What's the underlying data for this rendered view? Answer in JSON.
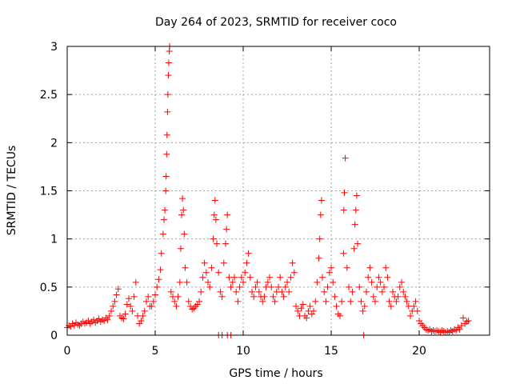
{
  "chart_data": {
    "type": "scatter",
    "title": "Day 264 of 2023, SRMTID for receiver coco",
    "xlabel": "GPS time / hours",
    "ylabel": "SRMTID / TECUs",
    "xlim": [
      0,
      24
    ],
    "ylim": [
      0,
      3
    ],
    "xticks": [
      0,
      5,
      10,
      15,
      20
    ],
    "yticks": [
      0,
      0.5,
      1,
      1.5,
      2,
      2.5,
      3
    ],
    "xtick_labels": [
      "0",
      "5",
      "10",
      "15",
      "20"
    ],
    "ytick_labels": [
      "0",
      "0.5",
      "1",
      "1.5",
      "2",
      "2.5",
      "3"
    ],
    "grid": true,
    "marker": "+",
    "color": "#ff0000",
    "series": [
      {
        "name": "SRMTID",
        "points": [
          [
            0.0,
            0.08
          ],
          [
            0.1,
            0.1
          ],
          [
            0.2,
            0.09
          ],
          [
            0.3,
            0.12
          ],
          [
            0.4,
            0.1
          ],
          [
            0.5,
            0.13
          ],
          [
            0.6,
            0.11
          ],
          [
            0.7,
            0.1
          ],
          [
            0.8,
            0.12
          ],
          [
            0.9,
            0.14
          ],
          [
            1.0,
            0.12
          ],
          [
            1.1,
            0.13
          ],
          [
            1.2,
            0.15
          ],
          [
            1.3,
            0.12
          ],
          [
            1.4,
            0.14
          ],
          [
            1.5,
            0.16
          ],
          [
            1.6,
            0.13
          ],
          [
            1.7,
            0.15
          ],
          [
            1.8,
            0.17
          ],
          [
            1.9,
            0.14
          ],
          [
            2.0,
            0.16
          ],
          [
            2.1,
            0.15
          ],
          [
            2.2,
            0.18
          ],
          [
            2.3,
            0.16
          ],
          [
            2.4,
            0.2
          ],
          [
            2.5,
            0.25
          ],
          [
            2.6,
            0.3
          ],
          [
            2.7,
            0.35
          ],
          [
            2.8,
            0.42
          ],
          [
            2.9,
            0.48
          ],
          [
            3.0,
            0.2
          ],
          [
            3.1,
            0.18
          ],
          [
            3.2,
            0.17
          ],
          [
            3.3,
            0.22
          ],
          [
            3.4,
            0.32
          ],
          [
            3.5,
            0.38
          ],
          [
            3.6,
            0.3
          ],
          [
            3.7,
            0.25
          ],
          [
            3.8,
            0.4
          ],
          [
            3.9,
            0.55
          ],
          [
            4.0,
            0.2
          ],
          [
            4.1,
            0.12
          ],
          [
            4.2,
            0.15
          ],
          [
            4.3,
            0.2
          ],
          [
            4.4,
            0.25
          ],
          [
            4.5,
            0.35
          ],
          [
            4.6,
            0.4
          ],
          [
            4.7,
            0.3
          ],
          [
            4.8,
            0.3
          ],
          [
            4.9,
            0.35
          ],
          [
            5.0,
            0.42
          ],
          [
            5.1,
            0.5
          ],
          [
            5.2,
            0.58
          ],
          [
            5.3,
            0.68
          ],
          [
            5.35,
            0.85
          ],
          [
            5.45,
            1.05
          ],
          [
            5.5,
            1.2
          ],
          [
            5.55,
            1.3
          ],
          [
            5.6,
            1.5
          ],
          [
            5.62,
            1.65
          ],
          [
            5.65,
            1.88
          ],
          [
            5.67,
            2.08
          ],
          [
            5.7,
            2.32
          ],
          [
            5.72,
            2.5
          ],
          [
            5.75,
            2.7
          ],
          [
            5.77,
            2.83
          ],
          [
            5.8,
            2.95
          ],
          [
            5.82,
            3.0
          ],
          [
            5.9,
            0.45
          ],
          [
            6.0,
            0.4
          ],
          [
            6.1,
            0.35
          ],
          [
            6.2,
            0.3
          ],
          [
            6.3,
            0.4
          ],
          [
            6.4,
            0.55
          ],
          [
            6.45,
            0.9
          ],
          [
            6.5,
            1.25
          ],
          [
            6.55,
            1.42
          ],
          [
            6.6,
            1.3
          ],
          [
            6.65,
            1.05
          ],
          [
            6.7,
            0.7
          ],
          [
            6.8,
            0.55
          ],
          [
            6.9,
            0.35
          ],
          [
            7.0,
            0.3
          ],
          [
            7.1,
            0.27
          ],
          [
            7.2,
            0.28
          ],
          [
            7.3,
            0.3
          ],
          [
            7.4,
            0.32
          ],
          [
            7.5,
            0.35
          ],
          [
            7.6,
            0.45
          ],
          [
            7.7,
            0.6
          ],
          [
            7.8,
            0.75
          ],
          [
            7.9,
            0.65
          ],
          [
            8.0,
            0.55
          ],
          [
            8.1,
            0.5
          ],
          [
            8.2,
            0.7
          ],
          [
            8.3,
            1.0
          ],
          [
            8.35,
            1.25
          ],
          [
            8.4,
            1.4
          ],
          [
            8.45,
            1.2
          ],
          [
            8.5,
            0.95
          ],
          [
            8.6,
            0.65
          ],
          [
            8.7,
            0.45
          ],
          [
            8.8,
            0.4
          ],
          [
            8.9,
            0.75
          ],
          [
            9.0,
            0.95
          ],
          [
            9.05,
            1.1
          ],
          [
            9.1,
            1.25
          ],
          [
            9.2,
            0.6
          ],
          [
            9.3,
            0.5
          ],
          [
            9.4,
            0.55
          ],
          [
            9.5,
            0.6
          ],
          [
            9.6,
            0.45
          ],
          [
            9.7,
            0.35
          ],
          [
            9.8,
            0.5
          ],
          [
            9.9,
            0.6
          ],
          [
            10.0,
            0.55
          ],
          [
            10.1,
            0.65
          ],
          [
            10.2,
            0.75
          ],
          [
            10.3,
            0.85
          ],
          [
            10.4,
            0.6
          ],
          [
            10.5,
            0.45
          ],
          [
            10.6,
            0.4
          ],
          [
            10.7,
            0.5
          ],
          [
            10.8,
            0.55
          ],
          [
            10.9,
            0.45
          ],
          [
            11.0,
            0.4
          ],
          [
            11.1,
            0.35
          ],
          [
            11.2,
            0.4
          ],
          [
            11.3,
            0.5
          ],
          [
            11.4,
            0.55
          ],
          [
            11.5,
            0.6
          ],
          [
            11.6,
            0.5
          ],
          [
            11.7,
            0.4
          ],
          [
            11.8,
            0.35
          ],
          [
            11.9,
            0.45
          ],
          [
            12.0,
            0.5
          ],
          [
            12.1,
            0.6
          ],
          [
            12.2,
            0.45
          ],
          [
            12.3,
            0.4
          ],
          [
            12.4,
            0.5
          ],
          [
            12.5,
            0.55
          ],
          [
            12.6,
            0.45
          ],
          [
            12.7,
            0.6
          ],
          [
            12.8,
            0.75
          ],
          [
            12.9,
            0.65
          ],
          [
            13.0,
            0.3
          ],
          [
            13.1,
            0.25
          ],
          [
            13.2,
            0.2
          ],
          [
            13.3,
            0.28
          ],
          [
            13.4,
            0.32
          ],
          [
            13.5,
            0.2
          ],
          [
            13.6,
            0.18
          ],
          [
            13.7,
            0.25
          ],
          [
            13.8,
            0.3
          ],
          [
            13.9,
            0.22
          ],
          [
            14.0,
            0.25
          ],
          [
            14.1,
            0.35
          ],
          [
            14.2,
            0.55
          ],
          [
            14.3,
            0.8
          ],
          [
            14.35,
            1.0
          ],
          [
            14.4,
            1.25
          ],
          [
            14.45,
            1.4
          ],
          [
            14.5,
            0.6
          ],
          [
            14.6,
            0.45
          ],
          [
            14.7,
            0.35
          ],
          [
            14.8,
            0.5
          ],
          [
            14.9,
            0.65
          ],
          [
            15.0,
            0.7
          ],
          [
            15.1,
            0.55
          ],
          [
            15.2,
            0.4
          ],
          [
            15.3,
            0.3
          ],
          [
            15.4,
            0.22
          ],
          [
            15.5,
            0.2
          ],
          [
            15.6,
            0.35
          ],
          [
            15.7,
            0.85
          ],
          [
            15.72,
            1.3
          ],
          [
            15.75,
            1.48
          ],
          [
            15.8,
            1.84
          ],
          [
            15.9,
            0.7
          ],
          [
            16.0,
            0.5
          ],
          [
            16.1,
            0.35
          ],
          [
            16.2,
            0.45
          ],
          [
            16.3,
            0.9
          ],
          [
            16.35,
            1.15
          ],
          [
            16.4,
            1.3
          ],
          [
            16.45,
            1.45
          ],
          [
            16.5,
            0.95
          ],
          [
            16.6,
            0.5
          ],
          [
            16.7,
            0.35
          ],
          [
            16.8,
            0.25
          ],
          [
            16.9,
            0.3
          ],
          [
            17.0,
            0.45
          ],
          [
            17.1,
            0.6
          ],
          [
            17.2,
            0.7
          ],
          [
            17.3,
            0.55
          ],
          [
            17.4,
            0.4
          ],
          [
            17.5,
            0.35
          ],
          [
            17.6,
            0.5
          ],
          [
            17.7,
            0.6
          ],
          [
            17.8,
            0.55
          ],
          [
            17.9,
            0.45
          ],
          [
            18.0,
            0.5
          ],
          [
            18.1,
            0.7
          ],
          [
            18.2,
            0.6
          ],
          [
            18.3,
            0.35
          ],
          [
            18.4,
            0.3
          ],
          [
            18.5,
            0.45
          ],
          [
            18.6,
            0.4
          ],
          [
            18.7,
            0.35
          ],
          [
            18.8,
            0.4
          ],
          [
            18.9,
            0.5
          ],
          [
            19.0,
            0.55
          ],
          [
            19.1,
            0.45
          ],
          [
            19.2,
            0.4
          ],
          [
            19.3,
            0.35
          ],
          [
            19.4,
            0.3
          ],
          [
            19.5,
            0.2
          ],
          [
            19.6,
            0.25
          ],
          [
            19.7,
            0.3
          ],
          [
            19.8,
            0.35
          ],
          [
            19.9,
            0.25
          ],
          [
            20.0,
            0.15
          ],
          [
            20.1,
            0.12
          ],
          [
            20.2,
            0.1
          ],
          [
            20.3,
            0.08
          ],
          [
            20.4,
            0.06
          ],
          [
            20.5,
            0.05
          ],
          [
            20.6,
            0.06
          ],
          [
            20.7,
            0.04
          ],
          [
            20.8,
            0.05
          ],
          [
            20.9,
            0.04
          ],
          [
            21.0,
            0.05
          ],
          [
            21.1,
            0.04
          ],
          [
            21.2,
            0.03
          ],
          [
            21.3,
            0.05
          ],
          [
            21.4,
            0.04
          ],
          [
            21.5,
            0.03
          ],
          [
            21.6,
            0.04
          ],
          [
            21.7,
            0.03
          ],
          [
            21.8,
            0.05
          ],
          [
            21.9,
            0.04
          ],
          [
            22.0,
            0.06
          ],
          [
            22.1,
            0.05
          ],
          [
            22.2,
            0.08
          ],
          [
            22.3,
            0.06
          ],
          [
            22.4,
            0.1
          ],
          [
            22.5,
            0.18
          ],
          [
            22.6,
            0.12
          ],
          [
            22.7,
            0.14
          ],
          [
            22.8,
            0.15
          ],
          [
            8.6,
            0.0
          ],
          [
            8.8,
            0.0
          ],
          [
            9.1,
            0.0
          ],
          [
            9.3,
            0.0
          ],
          [
            16.85,
            0.0
          ]
        ]
      }
    ]
  }
}
